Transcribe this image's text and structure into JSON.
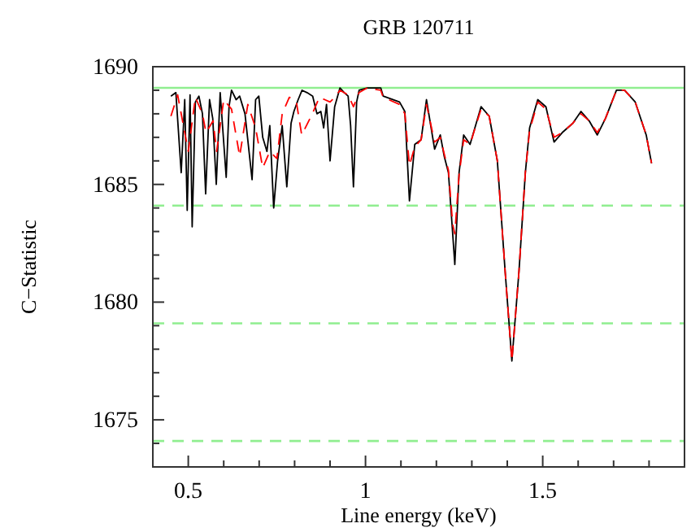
{
  "chart_data": {
    "type": "line",
    "title": "GRB 120711",
    "xlabel": "Line energy (keV)",
    "ylabel": "C−Statistic",
    "xlim": [
      0.4,
      1.9
    ],
    "ylim": [
      1673,
      1690
    ],
    "xticks": [
      {
        "value": 0.4,
        "label": null
      },
      {
        "value": 0.5,
        "label": "0.5"
      },
      {
        "value": 0.6,
        "label": null
      },
      {
        "value": 0.7,
        "label": null
      },
      {
        "value": 0.8,
        "label": null
      },
      {
        "value": 0.9,
        "label": null
      },
      1,
      {
        "value": 1.1,
        "label": null
      },
      {
        "value": 1.2,
        "label": null
      },
      {
        "value": 1.3,
        "label": null
      },
      {
        "value": 1.4,
        "label": null
      },
      1.5,
      {
        "value": 1.6,
        "label": null
      },
      {
        "value": 1.7,
        "label": null
      },
      {
        "value": 1.8,
        "label": null
      },
      {
        "value": 1.9,
        "label": null
      }
    ],
    "yticks": [
      {
        "value": 1674,
        "label": null
      },
      1675,
      {
        "value": 1676,
        "label": null
      },
      {
        "value": 1677,
        "label": null
      },
      {
        "value": 1678,
        "label": null
      },
      {
        "value": 1679,
        "label": null
      },
      1680,
      {
        "value": 1681,
        "label": null
      },
      {
        "value": 1682,
        "label": null
      },
      {
        "value": 1683,
        "label": null
      },
      {
        "value": 1684,
        "label": null
      },
      1685,
      {
        "value": 1686,
        "label": null
      },
      {
        "value": 1687,
        "label": null
      },
      {
        "value": 1688,
        "label": null
      },
      {
        "value": 1689,
        "label": null
      },
      1690
    ],
    "grid": false,
    "marker": "none",
    "ref_lines": [
      {
        "axis": "y",
        "value": 1689.1,
        "color": "#90ee90",
        "line_style": "solid"
      },
      {
        "axis": "y",
        "value": 1684.1,
        "color": "#90ee90",
        "line_style": "dashed"
      },
      {
        "axis": "y",
        "value": 1679.1,
        "color": "#90ee90",
        "line_style": "dashed"
      },
      {
        "axis": "y",
        "value": 1674.1,
        "color": "#90ee90",
        "line_style": "dashed"
      }
    ],
    "series": [
      {
        "color": "#000000",
        "line_style": "solid",
        "x": [
          0.451,
          0.465,
          0.48,
          0.49,
          0.497,
          0.505,
          0.511,
          0.52,
          0.53,
          0.54,
          0.549,
          0.56,
          0.569,
          0.579,
          0.59,
          0.607,
          0.615,
          0.622,
          0.635,
          0.645,
          0.66,
          0.68,
          0.69,
          0.699,
          0.71,
          0.722,
          0.73,
          0.741,
          0.752,
          0.765,
          0.778,
          0.79,
          0.798,
          0.81,
          0.821,
          0.835,
          0.851,
          0.863,
          0.874,
          0.882,
          0.89,
          0.9,
          0.913,
          0.928,
          0.94,
          0.951,
          0.958,
          0.966,
          0.975,
          0.982,
          1.005,
          1.043,
          1.05,
          1.096,
          1.111,
          1.124,
          1.139,
          1.157,
          1.172,
          1.195,
          1.211,
          1.222,
          1.234,
          1.246,
          1.252,
          1.264,
          1.277,
          1.295,
          1.326,
          1.349,
          1.372,
          1.394,
          1.413,
          1.433,
          1.451,
          1.463,
          1.486,
          1.509,
          1.532,
          1.555,
          1.585,
          1.608,
          1.631,
          1.654,
          1.677,
          1.708,
          1.731,
          1.761,
          1.792,
          1.807
        ],
        "values": [
          1688.75,
          1688.9,
          1685.5,
          1688.6,
          1683.9,
          1688.8,
          1683.2,
          1688.5,
          1688.75,
          1688.0,
          1684.6,
          1688.6,
          1687.8,
          1685.0,
          1688.9,
          1685.3,
          1688.3,
          1689.0,
          1688.6,
          1688.75,
          1688.0,
          1685.2,
          1688.6,
          1688.75,
          1687.0,
          1686.4,
          1687.5,
          1684.0,
          1686.0,
          1687.5,
          1684.9,
          1687.6,
          1688.1,
          1688.6,
          1689.0,
          1688.9,
          1688.75,
          1688.0,
          1688.1,
          1687.4,
          1688.4,
          1686.0,
          1688.3,
          1689.1,
          1688.9,
          1688.75,
          1687.5,
          1684.9,
          1688.5,
          1689.0,
          1689.1,
          1689.1,
          1688.75,
          1688.5,
          1688.1,
          1684.3,
          1686.7,
          1686.9,
          1688.6,
          1686.5,
          1687.1,
          1686.2,
          1685.5,
          1682.9,
          1681.6,
          1685.5,
          1687.1,
          1686.7,
          1688.3,
          1687.9,
          1686.0,
          1681.3,
          1677.5,
          1681.3,
          1685.5,
          1687.4,
          1688.6,
          1688.3,
          1686.8,
          1687.2,
          1687.6,
          1688.1,
          1687.7,
          1687.1,
          1687.8,
          1689.0,
          1689.0,
          1688.5,
          1687.1,
          1685.9
        ]
      },
      {
        "color": "#ff0000",
        "line_style": "dashed",
        "x": [
          0.451,
          0.47,
          0.5,
          0.52,
          0.54,
          0.55,
          0.57,
          0.58,
          0.6,
          0.622,
          0.645,
          0.668,
          0.69,
          0.71,
          0.73,
          0.75,
          0.765,
          0.785,
          0.805,
          0.82,
          0.85,
          0.87,
          0.885,
          0.9,
          0.913,
          0.928,
          0.951,
          0.966,
          0.982,
          1.005,
          1.043,
          1.05,
          1.096,
          1.111,
          1.124,
          1.139,
          1.157,
          1.172,
          1.195,
          1.211,
          1.222,
          1.234,
          1.246,
          1.252,
          1.264,
          1.277,
          1.295,
          1.326,
          1.349,
          1.372,
          1.394,
          1.413,
          1.433,
          1.451,
          1.463,
          1.486,
          1.509,
          1.532,
          1.555,
          1.585,
          1.608,
          1.631,
          1.654,
          1.677,
          1.708,
          1.731,
          1.761,
          1.792,
          1.807
        ],
        "values": [
          1687.9,
          1688.8,
          1686.4,
          1688.7,
          1688.0,
          1687.2,
          1687.7,
          1686.4,
          1688.6,
          1688.2,
          1686.2,
          1688.4,
          1687.4,
          1685.7,
          1686.4,
          1686.1,
          1688.0,
          1688.7,
          1688.5,
          1687.1,
          1688.0,
          1688.7,
          1688.6,
          1688.5,
          1688.7,
          1689.0,
          1688.8,
          1688.3,
          1688.9,
          1689.1,
          1689.0,
          1688.7,
          1688.4,
          1688.0,
          1685.8,
          1686.6,
          1686.9,
          1688.4,
          1686.8,
          1687.0,
          1686.3,
          1685.6,
          1683.3,
          1682.9,
          1685.4,
          1686.9,
          1686.7,
          1688.2,
          1687.9,
          1686.0,
          1681.3,
          1677.5,
          1681.3,
          1685.5,
          1687.3,
          1688.5,
          1688.2,
          1687.0,
          1687.2,
          1687.6,
          1688.0,
          1687.7,
          1687.2,
          1687.8,
          1689.0,
          1689.0,
          1688.5,
          1687.1,
          1685.9
        ]
      }
    ]
  }
}
